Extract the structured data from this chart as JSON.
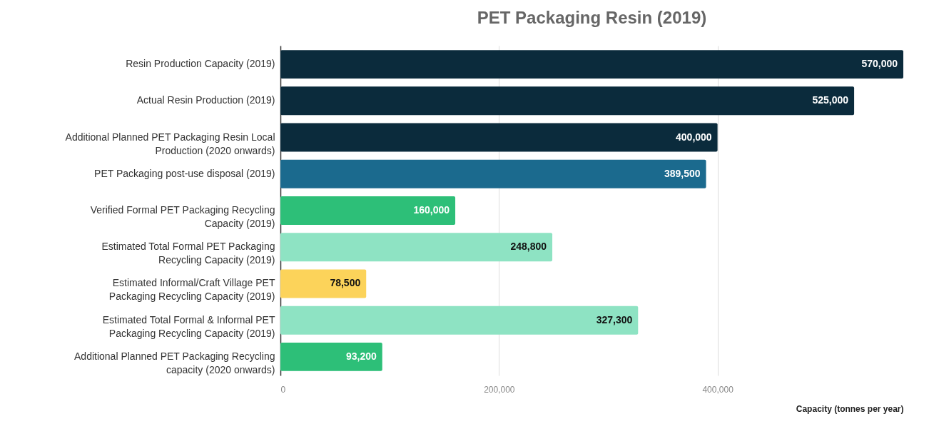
{
  "chart_data": {
    "type": "bar",
    "orientation": "horizontal",
    "title": "PET Packaging Resin (2019)",
    "xlabel": "Capacity (tonnes per year)",
    "categories": [
      "Resin Production Capacity (2019)",
      "Actual Resin Production (2019)",
      "Additional Planned PET Packaging Resin Local Production (2020 onwards)",
      "PET Packaging post-use disposal (2019)",
      "Verified Formal PET Packaging Recycling Capacity (2019)",
      "Estimated Total Formal PET Packaging Recycling Capacity (2019)",
      "Estimated Informal/Craft Village PET Packaging Recycling Capacity (2019)",
      "Estimated Total Formal & Informal PET Packaging Recycling Capacity (2019)",
      "Additional Planned PET Packaging Recycling capacity (2020 onwards)"
    ],
    "values": [
      570000,
      525000,
      400000,
      389500,
      160000,
      248800,
      78500,
      327300,
      93200
    ],
    "colors": [
      "#0b2b3c",
      "#0b2b3c",
      "#0b2b3c",
      "#1b6a8e",
      "#2dbf78",
      "#8ee3c3",
      "#fcd35a",
      "#8ee3c3",
      "#2dbf78"
    ],
    "xlim": [
      0,
      570000
    ],
    "xticks": [
      {
        "value": 0,
        "label": "0"
      },
      {
        "value": 200000,
        "label": "200,000"
      },
      {
        "value": 400000,
        "label": "400,000"
      }
    ],
    "value_labels": [
      "570,000",
      "525,000",
      "400,000",
      "389,500",
      "160,000",
      "248,800",
      "78,500",
      "327,300",
      "93,200"
    ],
    "grid": "x"
  }
}
